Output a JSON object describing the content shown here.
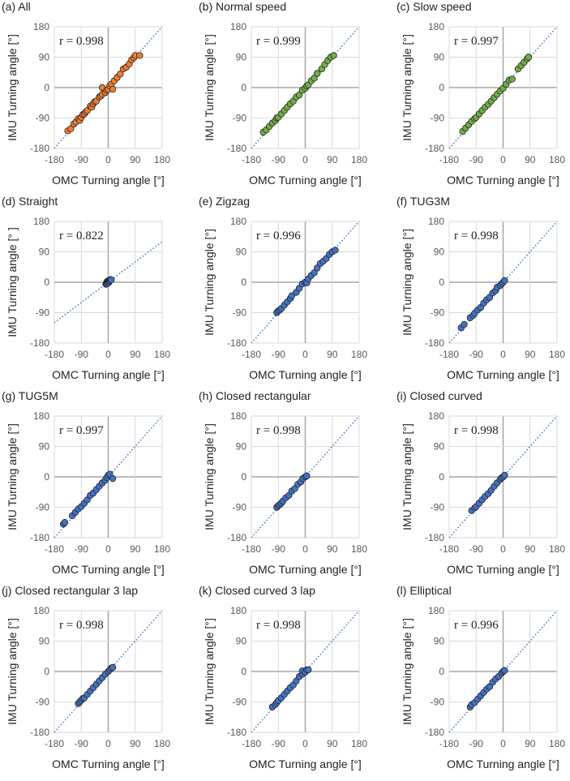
{
  "colors": {
    "orange": "#ED7D31",
    "green": "#70AD47",
    "blue": "#4472C4",
    "line": "#4472C4"
  },
  "chart_data": [
    {
      "type": "scatter",
      "title": "(a) All",
      "r_label": "r = 0.998",
      "color": "#ED7D31",
      "xlabel": "OMC Turning angle [°]",
      "ylabel": "IMU Turning angle [°]",
      "xlim": [
        -180,
        180
      ],
      "ylim": [
        -180,
        180
      ],
      "ticks": [
        "-180",
        "-90",
        "0",
        "90",
        "180"
      ],
      "fit_line": [
        [
          -180,
          -180
        ],
        [
          180,
          180
        ]
      ],
      "points": [
        [
          -135,
          -128
        ],
        [
          -125,
          -122
        ],
        [
          -115,
          -108
        ],
        [
          -108,
          -102
        ],
        [
          -100,
          -92
        ],
        [
          -95,
          -97
        ],
        [
          -90,
          -88
        ],
        [
          -85,
          -80
        ],
        [
          -80,
          -78
        ],
        [
          -75,
          -72
        ],
        [
          -70,
          -68
        ],
        [
          -60,
          -55
        ],
        [
          -55,
          -58
        ],
        [
          -50,
          -48
        ],
        [
          -45,
          -42
        ],
        [
          -40,
          -40
        ],
        [
          -30,
          -28
        ],
        [
          -25,
          -25
        ],
        [
          -20,
          -20
        ],
        [
          -20,
          0
        ],
        [
          -10,
          -15
        ],
        [
          -5,
          -8
        ],
        [
          0,
          -5
        ],
        [
          5,
          5
        ],
        [
          10,
          10
        ],
        [
          15,
          -5
        ],
        [
          20,
          20
        ],
        [
          30,
          30
        ],
        [
          40,
          40
        ],
        [
          50,
          55
        ],
        [
          60,
          60
        ],
        [
          70,
          70
        ],
        [
          78,
          82
        ],
        [
          85,
          88
        ],
        [
          90,
          95
        ],
        [
          105,
          95
        ]
      ]
    },
    {
      "type": "scatter",
      "title": "(b) Normal speed",
      "r_label": "r = 0.999",
      "color": "#70AD47",
      "xlabel": "OMC Turning angle [°]",
      "ylabel": "IMU Turning angle [°]",
      "xlim": [
        -180,
        180
      ],
      "ylim": [
        -180,
        180
      ],
      "ticks": [
        "-180",
        "-90",
        "0",
        "90",
        "180"
      ],
      "fit_line": [
        [
          -180,
          -180
        ],
        [
          180,
          180
        ]
      ],
      "points": [
        [
          -140,
          -132
        ],
        [
          -130,
          -125
        ],
        [
          -120,
          -115
        ],
        [
          -110,
          -105
        ],
        [
          -100,
          -98
        ],
        [
          -95,
          -90
        ],
        [
          -90,
          -88
        ],
        [
          -80,
          -78
        ],
        [
          -70,
          -68
        ],
        [
          -60,
          -58
        ],
        [
          -50,
          -48
        ],
        [
          -40,
          -40
        ],
        [
          -30,
          -28
        ],
        [
          -20,
          -22
        ],
        [
          -10,
          -8
        ],
        [
          0,
          -2
        ],
        [
          5,
          5
        ],
        [
          10,
          8
        ],
        [
          20,
          20
        ],
        [
          30,
          28
        ],
        [
          40,
          42
        ],
        [
          55,
          55
        ],
        [
          65,
          68
        ],
        [
          75,
          80
        ],
        [
          85,
          90
        ],
        [
          95,
          95
        ]
      ]
    },
    {
      "type": "scatter",
      "title": "(c) Slow speed",
      "r_label": "r = 0.997",
      "color": "#70AD47",
      "xlabel": "OMC Turning angle [°]",
      "ylabel": "IMU Turning angle [°]",
      "xlim": [
        -180,
        180
      ],
      "ylim": [
        -180,
        180
      ],
      "ticks": [
        "-180",
        "-90",
        "0",
        "90",
        "180"
      ],
      "fit_line": [
        [
          -180,
          -180
        ],
        [
          180,
          180
        ]
      ],
      "points": [
        [
          -135,
          -130
        ],
        [
          -125,
          -120
        ],
        [
          -115,
          -110
        ],
        [
          -105,
          -100
        ],
        [
          -95,
          -92
        ],
        [
          -90,
          -88
        ],
        [
          -80,
          -78
        ],
        [
          -70,
          -68
        ],
        [
          -60,
          -58
        ],
        [
          -50,
          -50
        ],
        [
          -40,
          -40
        ],
        [
          -30,
          -30
        ],
        [
          -20,
          -20
        ],
        [
          -10,
          -10
        ],
        [
          0,
          -2
        ],
        [
          10,
          10
        ],
        [
          20,
          22
        ],
        [
          30,
          25
        ],
        [
          50,
          55
        ],
        [
          60,
          65
        ],
        [
          70,
          75
        ],
        [
          80,
          85
        ],
        [
          85,
          90
        ]
      ]
    },
    {
      "type": "scatter",
      "title": "(d) Straight",
      "r_label": "r = 0.822",
      "color": "#4472C4",
      "xlabel": "OMC Turning angle [°]",
      "ylabel": "IMU Turning angle [°  ]",
      "xlim": [
        -180,
        180
      ],
      "ylim": [
        -180,
        180
      ],
      "ticks": [
        "-180",
        "-90",
        "0",
        "90",
        "180"
      ],
      "fit_line": [
        [
          -180,
          -120
        ],
        [
          180,
          120
        ]
      ],
      "points": [
        [
          -8,
          -6
        ],
        [
          -6,
          -2
        ],
        [
          -5,
          0
        ],
        [
          -4,
          2
        ],
        [
          -3,
          -4
        ],
        [
          -2,
          3
        ],
        [
          0,
          0
        ],
        [
          1,
          -2
        ],
        [
          2,
          4
        ],
        [
          3,
          2
        ],
        [
          4,
          6
        ],
        [
          6,
          5
        ],
        [
          8,
          8
        ],
        [
          10,
          7
        ]
      ]
    },
    {
      "type": "scatter",
      "title": "(e) Zigzag",
      "r_label": "r = 0.996",
      "color": "#4472C4",
      "xlabel": "OMC Turning angle [°]",
      "ylabel": "IMU Turning angle [°]",
      "xlim": [
        -180,
        180
      ],
      "ylim": [
        -180,
        180
      ],
      "ticks": [
        "-180",
        "-90",
        "0",
        "90",
        "180"
      ],
      "fit_line": [
        [
          -180,
          -180
        ],
        [
          180,
          180
        ]
      ],
      "points": [
        [
          -95,
          -90
        ],
        [
          -90,
          -85
        ],
        [
          -85,
          -82
        ],
        [
          -80,
          -78
        ],
        [
          -70,
          -68
        ],
        [
          -60,
          -58
        ],
        [
          -50,
          -48
        ],
        [
          -45,
          -40
        ],
        [
          -30,
          -30
        ],
        [
          -20,
          -18
        ],
        [
          -10,
          -5
        ],
        [
          0,
          0
        ],
        [
          5,
          -2
        ],
        [
          10,
          10
        ],
        [
          20,
          20
        ],
        [
          30,
          28
        ],
        [
          40,
          42
        ],
        [
          50,
          55
        ],
        [
          60,
          62
        ],
        [
          70,
          70
        ],
        [
          80,
          82
        ],
        [
          90,
          90
        ],
        [
          100,
          95
        ]
      ]
    },
    {
      "type": "scatter",
      "title": "(f) TUG3M",
      "r_label": "r = 0.998",
      "color": "#4472C4",
      "xlabel": "OMC Turning angle [°]",
      "ylabel": "IMU Turning angle [°]",
      "xlim": [
        -180,
        180
      ],
      "ylim": [
        -180,
        180
      ],
      "ticks": [
        "-180",
        "-90",
        "0",
        "90",
        "180"
      ],
      "fit_line": [
        [
          -180,
          -180
        ],
        [
          180,
          180
        ]
      ],
      "points": [
        [
          -140,
          -135
        ],
        [
          -130,
          -125
        ],
        [
          -110,
          -105
        ],
        [
          -100,
          -98
        ],
        [
          -95,
          -92
        ],
        [
          -85,
          -82
        ],
        [
          -75,
          -75
        ],
        [
          -65,
          -62
        ],
        [
          -55,
          -52
        ],
        [
          -45,
          -45
        ],
        [
          -35,
          -32
        ],
        [
          -25,
          -25
        ],
        [
          -20,
          -15
        ],
        [
          -10,
          -10
        ],
        [
          -5,
          -5
        ],
        [
          0,
          0
        ],
        [
          5,
          5
        ]
      ]
    },
    {
      "type": "scatter",
      "title": "(g) TUG5M",
      "r_label": "r = 0.997",
      "color": "#4472C4",
      "xlabel": "OMC Turning angle [°]",
      "ylabel": "IMU Turning angle [°]",
      "xlim": [
        -180,
        180
      ],
      "ylim": [
        -180,
        180
      ],
      "ticks": [
        "-180",
        "-90",
        "0",
        "90",
        "180"
      ],
      "fit_line": [
        [
          -180,
          -180
        ],
        [
          180,
          180
        ]
      ],
      "points": [
        [
          -150,
          -140
        ],
        [
          -145,
          -135
        ],
        [
          -120,
          -115
        ],
        [
          -110,
          -105
        ],
        [
          -100,
          -95
        ],
        [
          -90,
          -88
        ],
        [
          -80,
          -78
        ],
        [
          -70,
          -68
        ],
        [
          -60,
          -55
        ],
        [
          -50,
          -48
        ],
        [
          -40,
          -38
        ],
        [
          -30,
          -28
        ],
        [
          -20,
          -18
        ],
        [
          -10,
          -10
        ],
        [
          -5,
          -2
        ],
        [
          0,
          5
        ],
        [
          5,
          8
        ],
        [
          15,
          -5
        ]
      ]
    },
    {
      "type": "scatter",
      "title": "(h) Closed rectangular",
      "r_label": "r = 0.998",
      "color": "#4472C4",
      "xlabel": "OMC Turning angle [°]",
      "ylabel": "IMU Turning angle [°]",
      "xlim": [
        -180,
        180
      ],
      "ylim": [
        -180,
        180
      ],
      "ticks": [
        "-180",
        "-90",
        "0",
        "90",
        "180"
      ],
      "fit_line": [
        [
          -180,
          -180
        ],
        [
          180,
          180
        ]
      ],
      "points": [
        [
          -95,
          -90
        ],
        [
          -90,
          -85
        ],
        [
          -85,
          -82
        ],
        [
          -80,
          -78
        ],
        [
          -75,
          -72
        ],
        [
          -65,
          -62
        ],
        [
          -55,
          -55
        ],
        [
          -45,
          -42
        ],
        [
          -35,
          -35
        ],
        [
          -25,
          -22
        ],
        [
          -15,
          -15
        ],
        [
          -8,
          -5
        ],
        [
          0,
          0
        ],
        [
          5,
          3
        ]
      ]
    },
    {
      "type": "scatter",
      "title": "(i) Closed curved",
      "r_label": "r = 0.998",
      "color": "#4472C4",
      "xlabel": "OMC Turning angle [°]",
      "ylabel": "IMU Turning angle [°]",
      "xlim": [
        -180,
        180
      ],
      "ylim": [
        -180,
        180
      ],
      "ticks": [
        "-180",
        "-90",
        "0",
        "90",
        "180"
      ],
      "fit_line": [
        [
          -180,
          -180
        ],
        [
          180,
          180
        ]
      ],
      "points": [
        [
          -105,
          -100
        ],
        [
          -95,
          -92
        ],
        [
          -90,
          -88
        ],
        [
          -80,
          -78
        ],
        [
          -70,
          -68
        ],
        [
          -60,
          -58
        ],
        [
          -50,
          -50
        ],
        [
          -40,
          -40
        ],
        [
          -30,
          -28
        ],
        [
          -20,
          -18
        ],
        [
          -10,
          -8
        ],
        [
          -5,
          -3
        ],
        [
          0,
          0
        ],
        [
          5,
          5
        ]
      ]
    },
    {
      "type": "scatter",
      "title": "(j) Closed rectangular 3 lap",
      "r_label": "r = 0.998",
      "color": "#4472C4",
      "xlabel": "OMC Turning angle [°]",
      "ylabel": "IMU Turning angle [°]",
      "xlim": [
        -180,
        180
      ],
      "ylim": [
        -180,
        180
      ],
      "ticks": [
        "-180",
        "-90",
        "0",
        "90",
        "180"
      ],
      "fit_line": [
        [
          -180,
          -180
        ],
        [
          180,
          180
        ]
      ],
      "points": [
        [
          -100,
          -95
        ],
        [
          -95,
          -90
        ],
        [
          -90,
          -85
        ],
        [
          -85,
          -80
        ],
        [
          -80,
          -78
        ],
        [
          -70,
          -68
        ],
        [
          -60,
          -58
        ],
        [
          -50,
          -48
        ],
        [
          -40,
          -38
        ],
        [
          -30,
          -28
        ],
        [
          -20,
          -18
        ],
        [
          -10,
          -8
        ],
        [
          0,
          0
        ],
        [
          5,
          5
        ],
        [
          10,
          10
        ],
        [
          15,
          12
        ]
      ]
    },
    {
      "type": "scatter",
      "title": "(k) Closed curved 3 lap",
      "r_label": "r = 0.998",
      "color": "#4472C4",
      "xlabel": "OMC Turning angle [°]",
      "ylabel": "IMU Turning angle [°]",
      "xlim": [
        -180,
        180
      ],
      "ylim": [
        -180,
        180
      ],
      "ticks": [
        "-180",
        "-90",
        "0",
        "90",
        "180"
      ],
      "fit_line": [
        [
          -180,
          -180
        ],
        [
          180,
          180
        ]
      ],
      "points": [
        [
          -110,
          -105
        ],
        [
          -100,
          -98
        ],
        [
          -95,
          -92
        ],
        [
          -90,
          -86
        ],
        [
          -80,
          -78
        ],
        [
          -70,
          -68
        ],
        [
          -60,
          -58
        ],
        [
          -50,
          -48
        ],
        [
          -40,
          -40
        ],
        [
          -30,
          -28
        ],
        [
          -20,
          -15
        ],
        [
          -10,
          -8
        ],
        [
          -10,
          2
        ],
        [
          0,
          -2
        ],
        [
          5,
          5
        ],
        [
          10,
          5
        ]
      ]
    },
    {
      "type": "scatter",
      "title": "(l) Elliptical",
      "r_label": "r = 0.996",
      "color": "#4472C4",
      "xlabel": "OMC Turning angle [°]",
      "ylabel": "IMU Turning angle [°]",
      "xlim": [
        -180,
        180
      ],
      "ylim": [
        -180,
        180
      ],
      "ticks": [
        "-180",
        "-90",
        "0",
        "90",
        "180"
      ],
      "fit_line": [
        [
          -180,
          -180
        ],
        [
          180,
          180
        ]
      ],
      "points": [
        [
          -110,
          -105
        ],
        [
          -105,
          -98
        ],
        [
          -95,
          -92
        ],
        [
          -85,
          -82
        ],
        [
          -75,
          -72
        ],
        [
          -65,
          -62
        ],
        [
          -55,
          -52
        ],
        [
          -45,
          -45
        ],
        [
          -35,
          -32
        ],
        [
          -25,
          -22
        ],
        [
          -15,
          -15
        ],
        [
          -5,
          -5
        ],
        [
          0,
          0
        ],
        [
          5,
          3
        ]
      ]
    }
  ]
}
